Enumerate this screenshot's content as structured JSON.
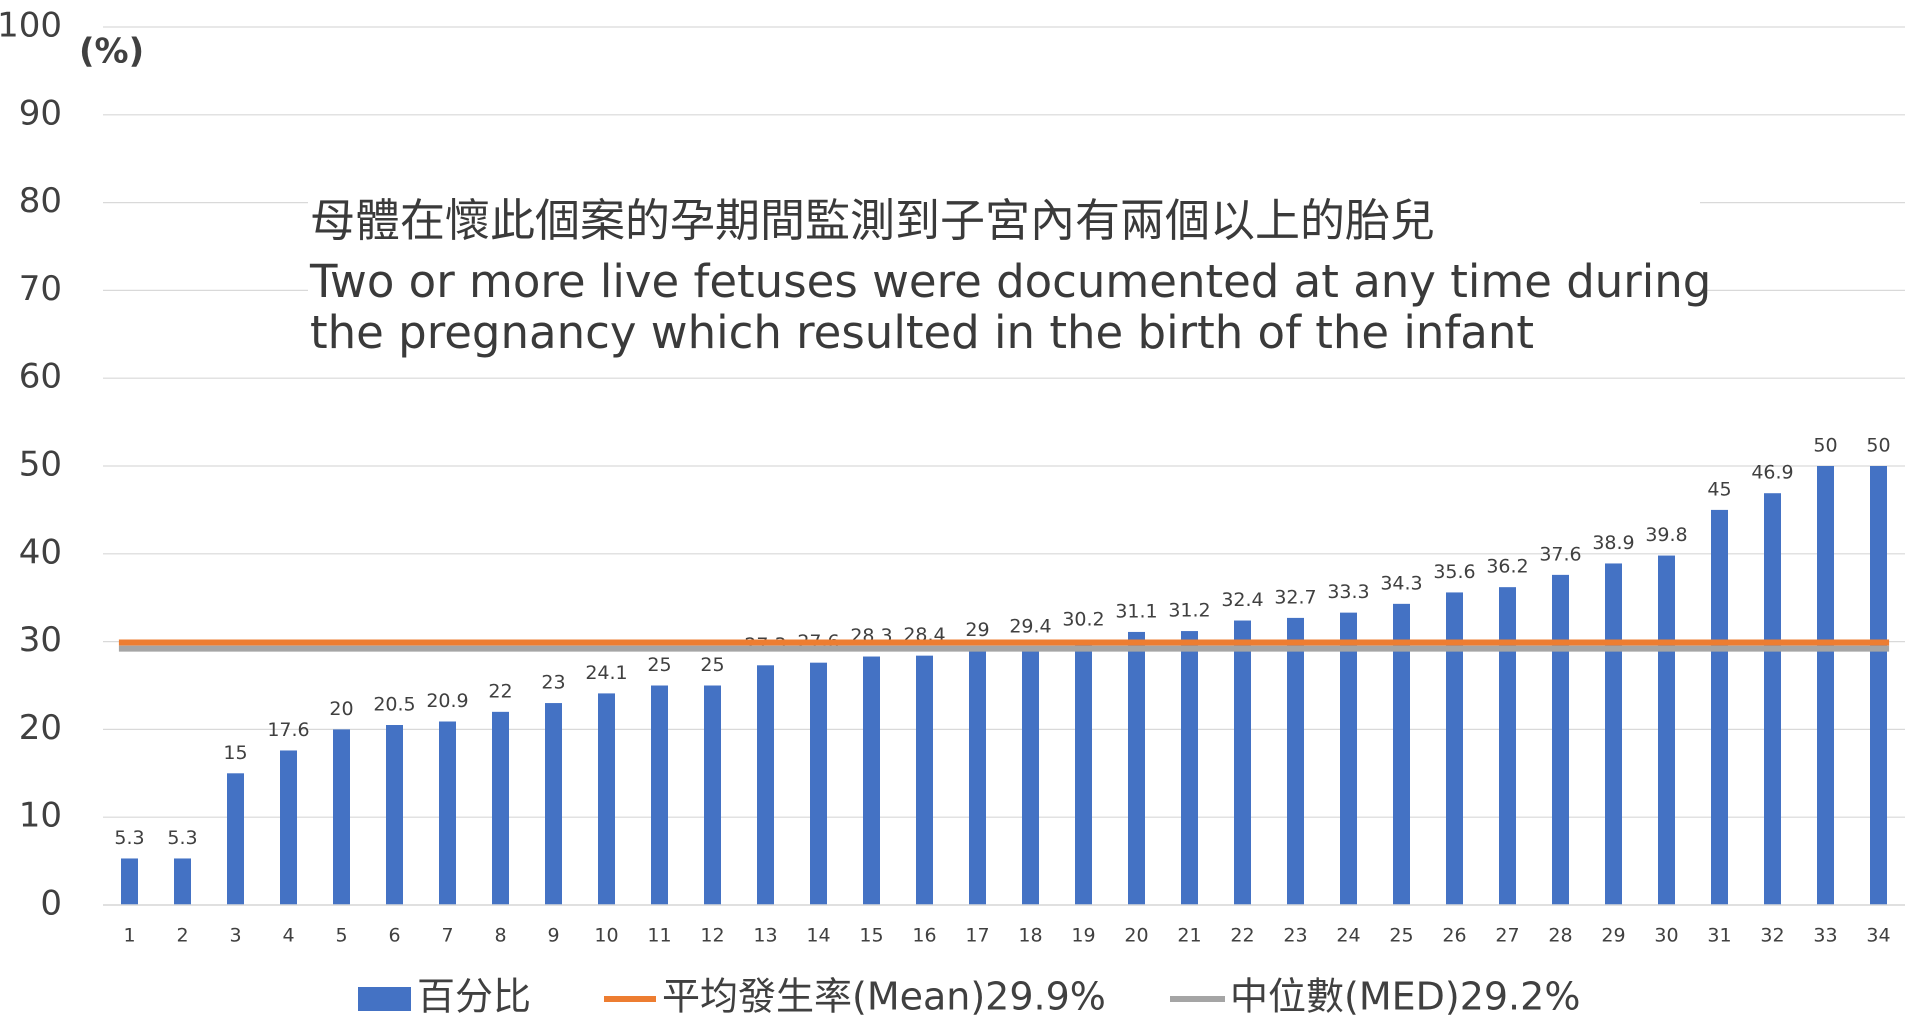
{
  "chart_data": {
    "type": "bar",
    "y_label": "(%)",
    "annotations": [
      "母體在懷此個案的孕期間監測到子宮內有兩個以上的胎兒",
      "Two or more live fetuses were documented at any time during",
      "the pregnancy which resulted in the birth of the infant"
    ],
    "categories": [
      "1",
      "2",
      "3",
      "4",
      "5",
      "6",
      "7",
      "8",
      "9",
      "10",
      "11",
      "12",
      "13",
      "14",
      "15",
      "16",
      "17",
      "18",
      "19",
      "20",
      "21",
      "22",
      "23",
      "24",
      "25",
      "26",
      "27",
      "28",
      "29",
      "30",
      "31",
      "32",
      "33",
      "34"
    ],
    "series": [
      {
        "name": "百分比",
        "color": "#4472c4",
        "values": [
          5.3,
          5.3,
          15,
          17.6,
          20,
          20.5,
          20.9,
          22,
          23,
          24.1,
          25,
          25,
          27.3,
          27.6,
          28.3,
          28.4,
          29,
          29.4,
          30.2,
          31.1,
          31.2,
          32.4,
          32.7,
          33.3,
          34.3,
          35.6,
          36.2,
          37.6,
          38.9,
          39.8,
          45,
          46.9,
          50,
          50
        ]
      },
      {
        "name": "平均發生率(Mean)29.9%",
        "color": "#ed7d31",
        "level": 29.9
      },
      {
        "name": "中位數(MED)29.2%",
        "color": "#a5a5a5",
        "level": 29.2
      }
    ],
    "ylim": [
      0,
      100
    ],
    "yticks": [
      0,
      10,
      20,
      30,
      40,
      50,
      60,
      70,
      80,
      90,
      100
    ],
    "grid": true
  }
}
